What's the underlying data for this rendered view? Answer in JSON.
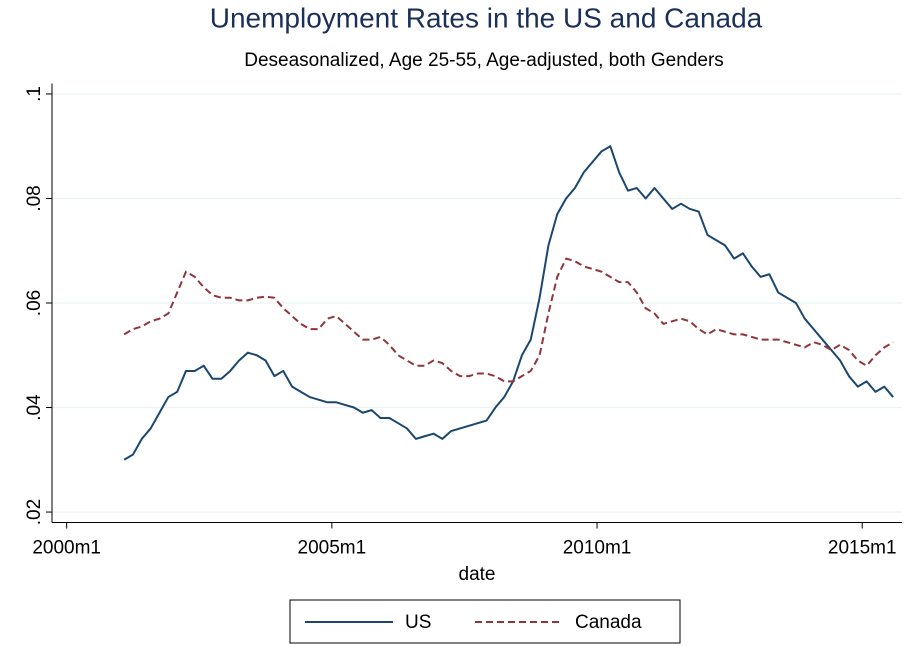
{
  "chart_data": {
    "type": "line",
    "title": "Unemployment Rates in the US and Canada",
    "subtitle": "Deseasonalized, Age 25-55, Age-adjusted, both Genders",
    "x_label": "date",
    "x": [
      "2001m2",
      "2001m4",
      "2001m6",
      "2001m8",
      "2001m10",
      "2001m12",
      "2002m2",
      "2002m4",
      "2002m6",
      "2002m8",
      "2002m10",
      "2002m12",
      "2003m2",
      "2003m4",
      "2003m6",
      "2003m8",
      "2003m10",
      "2003m12",
      "2004m2",
      "2004m4",
      "2004m6",
      "2004m8",
      "2004m10",
      "2004m12",
      "2005m2",
      "2005m4",
      "2005m6",
      "2005m8",
      "2005m10",
      "2005m12",
      "2006m2",
      "2006m4",
      "2006m6",
      "2006m8",
      "2006m10",
      "2006m12",
      "2007m2",
      "2007m4",
      "2007m6",
      "2007m8",
      "2007m10",
      "2007m12",
      "2008m2",
      "2008m4",
      "2008m6",
      "2008m8",
      "2008m10",
      "2008m12",
      "2009m2",
      "2009m4",
      "2009m6",
      "2009m8",
      "2009m10",
      "2009m12",
      "2010m2",
      "2010m4",
      "2010m6",
      "2010m8",
      "2010m10",
      "2010m12",
      "2011m2",
      "2011m4",
      "2011m6",
      "2011m8",
      "2011m10",
      "2011m12",
      "2012m2",
      "2012m4",
      "2012m6",
      "2012m8",
      "2012m10",
      "2012m12",
      "2013m2",
      "2013m4",
      "2013m6",
      "2013m8",
      "2013m10",
      "2013m12",
      "2014m2",
      "2014m4",
      "2014m6",
      "2014m8",
      "2014m10",
      "2014m12",
      "2015m2",
      "2015m4",
      "2015m6",
      "2015m8"
    ],
    "series": [
      {
        "name": "US",
        "color": "#1a476f",
        "dash": false,
        "values": [
          0.03,
          0.031,
          0.034,
          0.036,
          0.039,
          0.042,
          0.043,
          0.047,
          0.047,
          0.048,
          0.0455,
          0.0455,
          0.047,
          0.049,
          0.0505,
          0.05,
          0.049,
          0.046,
          0.047,
          0.044,
          0.043,
          0.042,
          0.0415,
          0.041,
          0.041,
          0.0405,
          0.04,
          0.039,
          0.0395,
          0.038,
          0.038,
          0.037,
          0.036,
          0.034,
          0.0345,
          0.035,
          0.034,
          0.0355,
          0.036,
          0.0365,
          0.037,
          0.0375,
          0.04,
          0.042,
          0.045,
          0.05,
          0.053,
          0.061,
          0.071,
          0.077,
          0.08,
          0.082,
          0.085,
          0.087,
          0.089,
          0.09,
          0.085,
          0.0815,
          0.082,
          0.08,
          0.082,
          0.08,
          0.078,
          0.079,
          0.078,
          0.0775,
          0.073,
          0.072,
          0.071,
          0.0685,
          0.0695,
          0.067,
          0.065,
          0.0655,
          0.062,
          0.061,
          0.06,
          0.057,
          0.055,
          0.053,
          0.051,
          0.049,
          0.046,
          0.044,
          0.045,
          0.043,
          0.044,
          0.042
        ]
      },
      {
        "name": "Canada",
        "color": "#90353b",
        "dash": true,
        "values": [
          0.054,
          0.055,
          0.0555,
          0.0565,
          0.057,
          0.058,
          0.062,
          0.066,
          0.065,
          0.063,
          0.0615,
          0.061,
          0.061,
          0.0605,
          0.0605,
          0.061,
          0.0612,
          0.061,
          0.059,
          0.0575,
          0.056,
          0.055,
          0.055,
          0.057,
          0.0575,
          0.056,
          0.0545,
          0.053,
          0.053,
          0.0535,
          0.052,
          0.05,
          0.049,
          0.048,
          0.048,
          0.049,
          0.0485,
          0.047,
          0.046,
          0.046,
          0.0465,
          0.0465,
          0.046,
          0.045,
          0.045,
          0.046,
          0.047,
          0.05,
          0.058,
          0.065,
          0.0685,
          0.068,
          0.067,
          0.0665,
          0.066,
          0.065,
          0.064,
          0.064,
          0.062,
          0.059,
          0.058,
          0.056,
          0.0565,
          0.057,
          0.0565,
          0.055,
          0.054,
          0.055,
          0.0545,
          0.054,
          0.054,
          0.0535,
          0.053,
          0.053,
          0.053,
          0.0525,
          0.052,
          0.0515,
          0.0525,
          0.052,
          0.051,
          0.052,
          0.051,
          0.049,
          0.048,
          0.05,
          0.0515,
          0.0525
        ]
      }
    ],
    "xlim": [
      "1999m9",
      "2015m10"
    ],
    "xticks": [
      "2000m1",
      "2005m1",
      "2010m1",
      "2015m1"
    ],
    "ylim": [
      0.018,
      0.102
    ],
    "yticks": [
      {
        "value": 0.02,
        "label": ".02"
      },
      {
        "value": 0.04,
        "label": ".04"
      },
      {
        "value": 0.06,
        "label": ".06"
      },
      {
        "value": 0.08,
        "label": ".08"
      },
      {
        "value": 0.1,
        "label": ".1"
      }
    ],
    "grid": true
  }
}
